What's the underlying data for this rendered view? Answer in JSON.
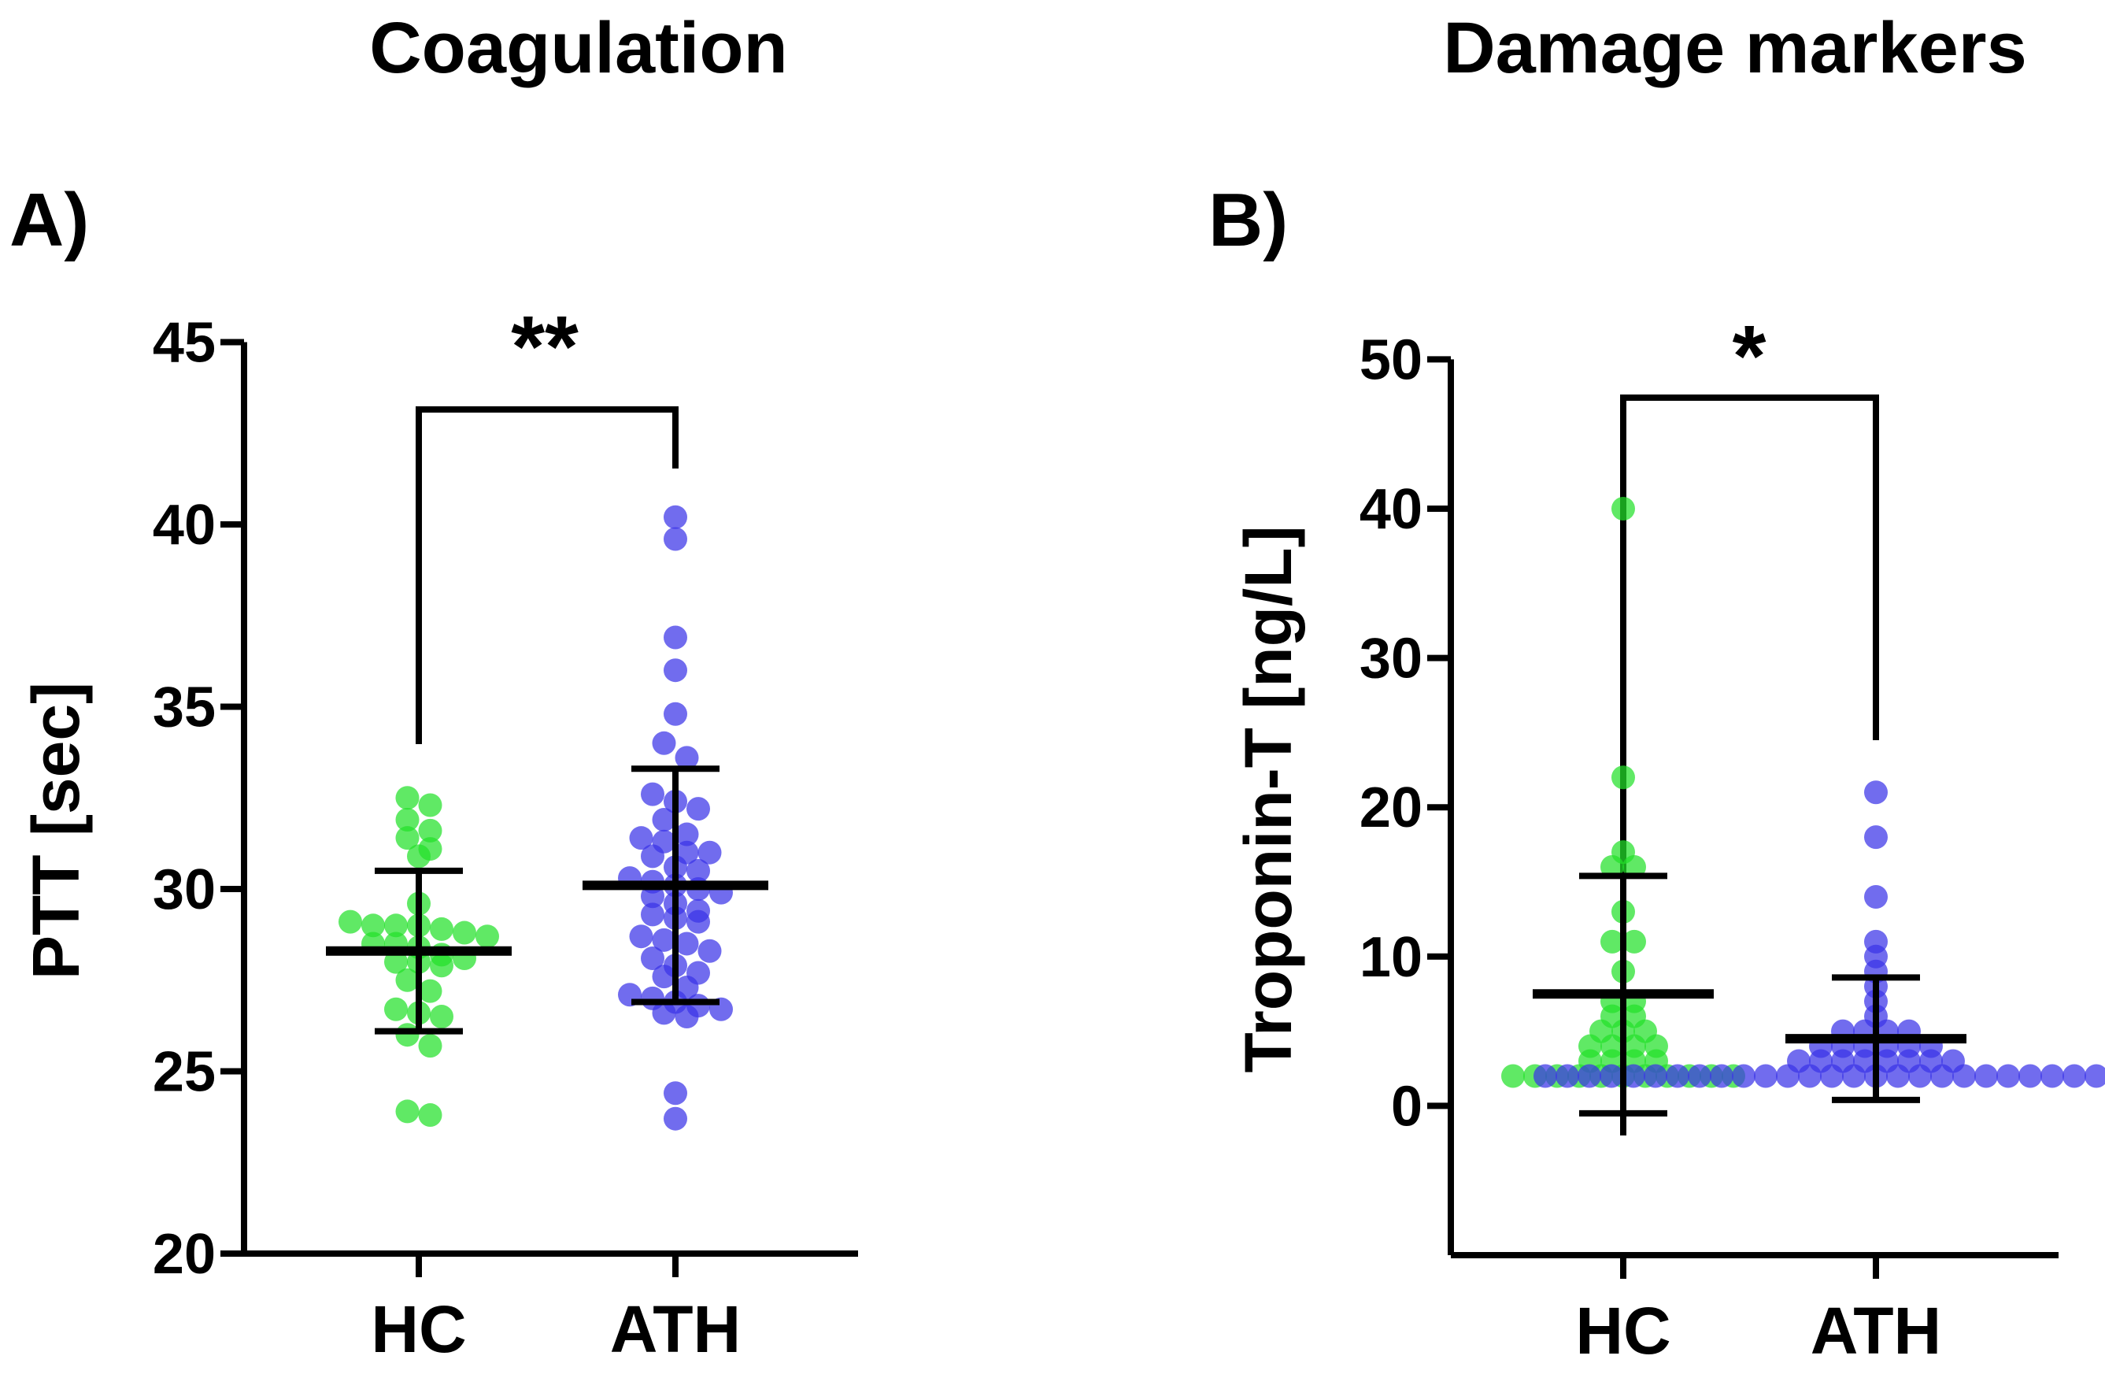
{
  "chart_data": [
    {
      "type": "scatter",
      "section_title": "Coagulation",
      "panel_label": "A)",
      "ylabel": "PTT [sec]",
      "ylim": [
        20,
        45
      ],
      "yticks": [
        "20",
        "25",
        "30",
        "35",
        "40",
        "45"
      ],
      "categories": [
        "HC",
        "ATH"
      ],
      "significance": "**",
      "colors": {
        "HC": "#22e02a",
        "ATH": "#3a33e8"
      },
      "series": [
        {
          "name": "HC",
          "values": [
            32.5,
            32.3,
            31.9,
            31.6,
            31.4,
            31.1,
            30.9,
            29.6,
            29.1,
            29.0,
            29.0,
            29.0,
            28.9,
            28.8,
            28.7,
            28.5,
            28.5,
            28.4,
            28.2,
            28.1,
            28.0,
            28.0,
            27.9,
            27.5,
            27.2,
            26.7,
            26.6,
            26.5,
            26.0,
            25.7,
            23.9,
            23.8
          ],
          "mean": 28.3,
          "sd_upper": 30.5,
          "sd_lower": 26.1
        },
        {
          "name": "ATH",
          "values": [
            40.2,
            39.6,
            36.9,
            36.0,
            34.8,
            34.0,
            33.6,
            32.6,
            32.4,
            32.2,
            31.9,
            31.5,
            31.4,
            31.3,
            31.0,
            31.0,
            30.9,
            30.6,
            30.5,
            30.3,
            30.2,
            30.1,
            30.0,
            29.9,
            29.8,
            29.6,
            29.4,
            29.3,
            29.2,
            29.1,
            28.7,
            28.6,
            28.5,
            28.3,
            28.1,
            27.9,
            27.7,
            27.6,
            27.3,
            27.1,
            27.0,
            26.9,
            26.8,
            26.7,
            26.6,
            26.5,
            24.4,
            23.7
          ],
          "mean": 30.1,
          "sd_upper": 33.3,
          "sd_lower": 26.9
        }
      ]
    },
    {
      "type": "scatter",
      "section_title": "Damage markers",
      "panel_label": "B)",
      "ylabel": "Troponin-T [ng/L]",
      "ylim": [
        -10,
        50
      ],
      "yticks": [
        "0",
        "10",
        "20",
        "30",
        "40",
        "50"
      ],
      "categories": [
        "HC",
        "ATH"
      ],
      "significance": "*",
      "colors": {
        "HC": "#22e02a",
        "ATH": "#3a33e8"
      },
      "series": [
        {
          "name": "HC",
          "values": [
            40,
            22,
            17,
            16,
            16,
            13,
            11,
            11,
            9,
            7,
            7,
            6,
            6,
            5,
            5,
            5,
            4,
            4,
            4,
            4,
            3,
            3,
            3,
            3,
            2,
            2,
            2,
            2,
            2,
            2,
            2,
            2,
            2,
            2,
            2
          ],
          "mean": 7.5,
          "sd_upper": 15.4,
          "sd_lower": -0.5
        },
        {
          "name": "ATH",
          "values": [
            21,
            18,
            14,
            11,
            10,
            9,
            8,
            7,
            6,
            5,
            5,
            5,
            5,
            4,
            4,
            4,
            4,
            4,
            4,
            3,
            3,
            3,
            3,
            3,
            3,
            3,
            3,
            2,
            2,
            2,
            2,
            2,
            2,
            2,
            2,
            2,
            2,
            2,
            2,
            2,
            2,
            2,
            2,
            2,
            2,
            2,
            2,
            2,
            2,
            2,
            2,
            2,
            2,
            2,
            2,
            2,
            2,
            2
          ],
          "mean": 4.5,
          "sd_upper": 8.6,
          "sd_lower": 0.4
        }
      ]
    }
  ]
}
